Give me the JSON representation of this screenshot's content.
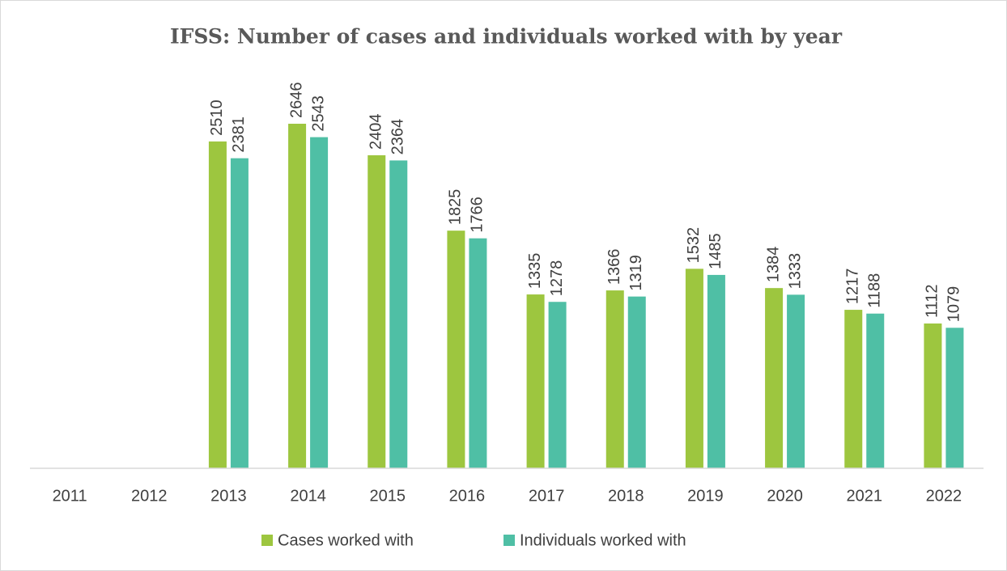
{
  "chart_data": {
    "type": "bar",
    "title": "IFSS: Number of cases and individuals worked with by year",
    "categories": [
      "2011",
      "2012",
      "2013",
      "2014",
      "2015",
      "2016",
      "2017",
      "2018",
      "2019",
      "2020",
      "2021",
      "2022"
    ],
    "series": [
      {
        "name": "Cases worked with",
        "color": "#9dc63f",
        "values": [
          null,
          null,
          2510,
          2646,
          2404,
          1825,
          1335,
          1366,
          1532,
          1384,
          1217,
          1112
        ]
      },
      {
        "name": "Individuals worked with",
        "color": "#4fbfa5",
        "values": [
          null,
          null,
          2381,
          2543,
          2364,
          1766,
          1278,
          1319,
          1485,
          1333,
          1188,
          1079
        ]
      }
    ],
    "ylim": [
      0,
      3000
    ],
    "legend": "bottom"
  }
}
